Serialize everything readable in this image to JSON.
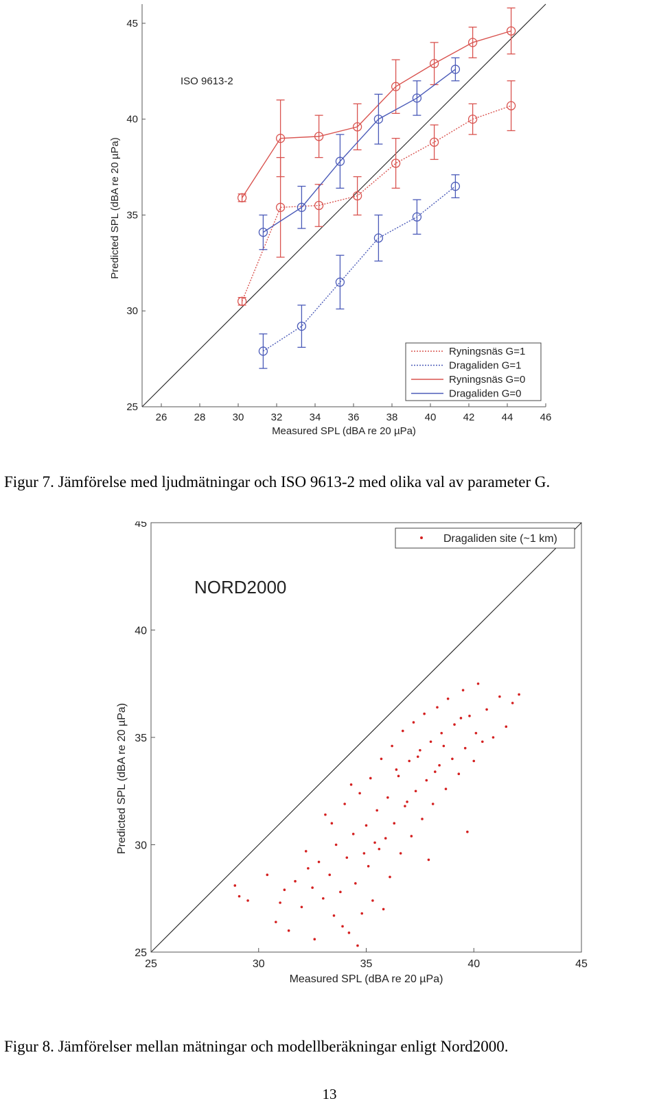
{
  "figures": [
    {
      "caption": "Figur 7. Jämförelse med ljudmätningar och ISO 9613-2 med olika val av parameter G.",
      "chart_data": {
        "type": "line",
        "annotation": "ISO 9613-2",
        "xlabel": "Measured SPL (dBA re 20 µPa)",
        "ylabel": "Predicted SPL (dBA re 20 µPa)",
        "xlim": [
          25,
          46
        ],
        "ylim": [
          25,
          46
        ],
        "xticks": [
          "26",
          "28",
          "30",
          "32",
          "34",
          "36",
          "38",
          "40",
          "42",
          "44",
          "46"
        ],
        "yticks": [
          "25",
          "30",
          "35",
          "40",
          "45"
        ],
        "grid": false,
        "reference_line": "y = x",
        "legend_position": "bottom-right",
        "series": [
          {
            "name": "Ryningsnäs G=1",
            "color": "#d9534f",
            "linestyle": "dotted",
            "x": [
              30.2,
              32.2,
              34.2,
              36.2,
              38.2,
              40.2,
              42.2,
              44.2
            ],
            "y": [
              30.5,
              35.4,
              35.5,
              36.0,
              37.7,
              38.8,
              40.0,
              40.7
            ],
            "err": [
              0.2,
              2.6,
              1.1,
              1.0,
              1.3,
              0.9,
              0.8,
              1.3
            ]
          },
          {
            "name": "Dragaliden G=1",
            "color": "#4a5ab8",
            "linestyle": "dotted",
            "x": [
              31.3,
              33.3,
              35.3,
              37.3,
              39.3,
              41.3
            ],
            "y": [
              27.9,
              29.2,
              31.5,
              33.8,
              34.9,
              36.5
            ],
            "err": [
              0.9,
              1.1,
              1.4,
              1.2,
              0.9,
              0.6
            ]
          },
          {
            "name": "Ryningsnäs G=0",
            "color": "#d9534f",
            "linestyle": "solid",
            "x": [
              30.2,
              32.2,
              34.2,
              36.2,
              38.2,
              40.2,
              42.2,
              44.2
            ],
            "y": [
              35.9,
              39.0,
              39.1,
              39.6,
              41.7,
              42.9,
              44.0,
              44.6
            ],
            "err": [
              0.2,
              2.0,
              1.1,
              1.2,
              1.4,
              1.1,
              0.8,
              1.2
            ]
          },
          {
            "name": "Dragaliden G=0",
            "color": "#4a5ab8",
            "linestyle": "solid",
            "x": [
              31.3,
              33.3,
              35.3,
              37.3,
              39.3,
              41.3
            ],
            "y": [
              34.1,
              35.4,
              37.8,
              40.0,
              41.1,
              42.6
            ],
            "err": [
              0.9,
              1.1,
              1.4,
              1.3,
              0.9,
              0.6
            ]
          }
        ]
      }
    },
    {
      "caption": "Figur 8. Jämförelser mellan mätningar och modellberäkningar enligt Nord2000.",
      "chart_data": {
        "type": "scatter",
        "annotation": "NORD2000",
        "xlabel": "Measured SPL (dBA re 20 µPa)",
        "ylabel": "Predicted SPL (dBA re 20 µPa)",
        "xlim": [
          25,
          45
        ],
        "ylim": [
          25,
          45
        ],
        "xticks": [
          "25",
          "30",
          "35",
          "40",
          "45"
        ],
        "yticks": [
          "25",
          "30",
          "35",
          "40",
          "45"
        ],
        "grid": false,
        "reference_line": "y = x",
        "legend_position": "top-right",
        "series": [
          {
            "name": "Dragaliden site (~1 km)",
            "color": "#d42020",
            "x": [
              28.9,
              29.1,
              29.5,
              30.4,
              30.8,
              31.0,
              31.4,
              31.7,
              32.0,
              32.2,
              32.5,
              32.6,
              32.8,
              33.0,
              33.1,
              33.3,
              33.5,
              33.6,
              33.8,
              34.0,
              34.1,
              34.2,
              34.4,
              34.5,
              34.7,
              34.8,
              35.0,
              35.1,
              35.2,
              35.3,
              35.5,
              35.6,
              35.7,
              35.9,
              36.0,
              36.1,
              36.2,
              36.3,
              36.5,
              36.6,
              36.7,
              36.8,
              37.0,
              37.1,
              37.2,
              37.3,
              37.5,
              37.6,
              37.7,
              37.8,
              38.0,
              38.1,
              38.3,
              38.4,
              38.5,
              38.7,
              38.8,
              39.0,
              39.1,
              39.3,
              39.5,
              39.6,
              39.8,
              40.0,
              40.2,
              40.4,
              40.6,
              40.9,
              41.2,
              41.5,
              41.8,
              42.1,
              33.4,
              34.3,
              35.4,
              36.4,
              37.4,
              38.6,
              39.4,
              32.3,
              34.9,
              36.9,
              38.2,
              40.1,
              31.2,
              33.9,
              35.8,
              37.9,
              39.7,
              34.6
            ],
            "y": [
              28.1,
              27.6,
              27.4,
              28.6,
              26.4,
              27.3,
              26.0,
              28.3,
              27.1,
              29.7,
              28.0,
              25.6,
              29.2,
              27.5,
              31.4,
              28.6,
              26.7,
              30.0,
              27.8,
              31.9,
              29.4,
              25.9,
              30.5,
              28.2,
              32.4,
              26.8,
              30.9,
              29.0,
              33.1,
              27.4,
              31.6,
              29.8,
              34.0,
              30.3,
              32.2,
              28.5,
              34.6,
              31.0,
              33.2,
              29.6,
              35.3,
              31.8,
              33.9,
              30.4,
              35.7,
              32.5,
              34.4,
              31.2,
              36.1,
              33.0,
              34.8,
              31.9,
              36.4,
              33.7,
              35.2,
              32.6,
              36.8,
              34.0,
              35.6,
              33.3,
              37.2,
              34.5,
              36.0,
              33.9,
              37.5,
              34.8,
              36.3,
              35.0,
              36.9,
              35.5,
              36.6,
              37.0,
              31.0,
              32.8,
              30.1,
              33.5,
              34.1,
              34.6,
              35.9,
              28.9,
              29.6,
              32.0,
              33.4,
              35.2,
              27.9,
              26.2,
              27.0,
              29.3,
              30.6,
              25.3
            ]
          }
        ]
      }
    }
  ],
  "page_number": "13"
}
